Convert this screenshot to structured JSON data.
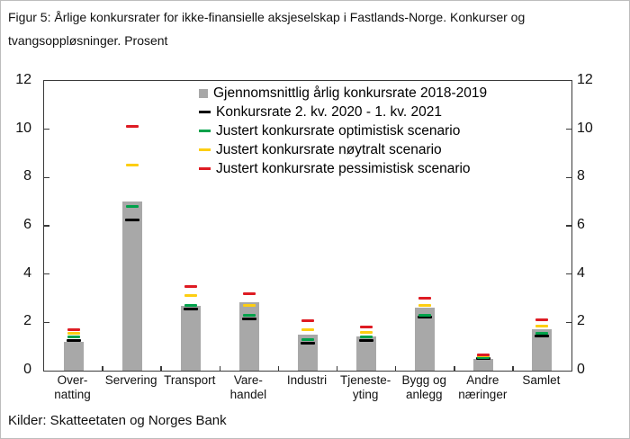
{
  "figure": {
    "title_lines": [
      "Figur 5: Årlige konkursrater for ikke-finansielle aksjeselskap i Fastlands-Norge. Konkurser og",
      "tvangsoppløsninger. Prosent"
    ],
    "source": "Kilder: Skatteetaten og Norges Bank"
  },
  "chart_data": {
    "type": "bar",
    "title": "Årlige konkursrater for ikke-finansielle aksjeselskap i Fastlands-Norge. Konkurser og tvangsoppløsninger. Prosent",
    "xlabel": "",
    "ylabel": "Prosent",
    "ylim": [
      0,
      12
    ],
    "grid": false,
    "legend_position": "inside-top-center",
    "y_axis": {
      "min": 0,
      "max": 12,
      "ticks": [
        0,
        2,
        4,
        6,
        8,
        10,
        12
      ],
      "label_sides": [
        "left",
        "right"
      ]
    },
    "categories": [
      "Overnatting",
      "Servering",
      "Transport",
      "Varehandel",
      "Industri",
      "Tjenesteyting",
      "Bygg og anlegg",
      "Andre næringer",
      "Samlet"
    ],
    "category_labels": [
      [
        "Over-",
        "natting"
      ],
      [
        "Servering"
      ],
      [
        "Transport"
      ],
      [
        "Vare-",
        "handel"
      ],
      [
        "Industri"
      ],
      [
        "Tjeneste-",
        "yting"
      ],
      [
        "Bygg og",
        "anlegg"
      ],
      [
        "Andre",
        "næringer"
      ],
      [
        "Samlet"
      ]
    ],
    "series": [
      {
        "name": "Gjennomsnittlig årlig konkursrate 2018-2019",
        "style": "bar",
        "color": "#a8a8a8",
        "values": [
          1.2,
          7.0,
          2.7,
          2.85,
          1.5,
          1.4,
          2.6,
          0.5,
          1.7
        ]
      },
      {
        "name": "Konkursrate 2. kv. 2020 - 1. kv. 2021",
        "style": "dash",
        "color": "#000000",
        "values": [
          1.25,
          6.25,
          2.55,
          2.15,
          1.15,
          1.25,
          2.2,
          0.5,
          1.45
        ]
      },
      {
        "name": "Justert konkursrate optimistisk scenario",
        "style": "dash",
        "color": "#00a24b",
        "values": [
          1.4,
          6.8,
          2.7,
          2.3,
          1.3,
          1.4,
          2.3,
          0.55,
          1.55
        ]
      },
      {
        "name": "Justert konkursrate nøytralt scenario",
        "style": "dash",
        "color": "#fdce12",
        "values": [
          1.55,
          8.5,
          3.1,
          2.7,
          1.7,
          1.6,
          2.7,
          0.6,
          1.85
        ]
      },
      {
        "name": "Justert konkursrate pessimistisk scenario",
        "style": "dash",
        "color": "#de1b23",
        "values": [
          1.7,
          10.1,
          3.5,
          3.2,
          2.05,
          1.8,
          3.0,
          0.65,
          2.1
        ]
      }
    ]
  }
}
